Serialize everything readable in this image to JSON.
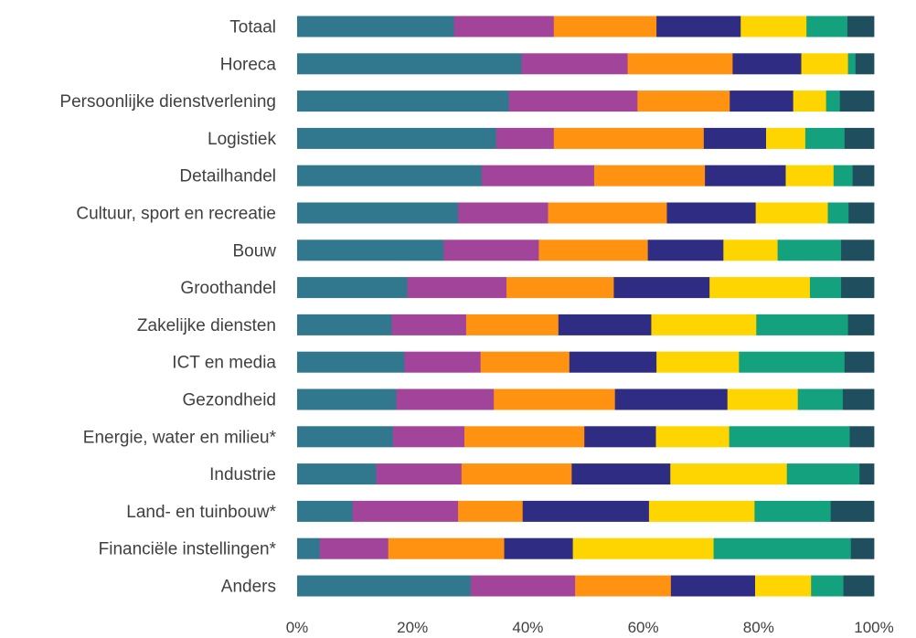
{
  "chart_data": {
    "type": "bar",
    "orientation": "horizontal",
    "stacked": true,
    "normalized": true,
    "categories": [
      "Totaal",
      "Horeca",
      "Persoonlijke dienstverlening",
      "Logistiek",
      "Detailhandel",
      "Cultuur, sport en recreatie",
      "Bouw",
      "Groothandel",
      "Zakelijke diensten",
      "ICT en media",
      "Gezondheid",
      "Energie, water en milieu*",
      "Industrie",
      "Land- en tuinbouw*",
      "Financiële instellingen*",
      "Anders"
    ],
    "series": [
      {
        "color": "#31788F",
        "values": [
          27.2,
          38.9,
          36.7,
          34.5,
          32.0,
          27.9,
          25.4,
          19.1,
          16.4,
          18.6,
          17.2,
          16.6,
          13.7,
          9.6,
          3.9,
          30.1
        ]
      },
      {
        "color": "#A2449A",
        "values": [
          17.3,
          18.4,
          22.3,
          10.0,
          19.5,
          15.6,
          16.5,
          17.2,
          12.9,
          13.2,
          16.9,
          12.4,
          14.8,
          18.3,
          11.9,
          18.1
        ]
      },
      {
        "color": "#FF9211",
        "values": [
          17.8,
          18.2,
          16.0,
          26.0,
          19.2,
          20.6,
          18.9,
          18.6,
          16.0,
          15.4,
          21.0,
          20.8,
          19.1,
          11.2,
          20.1,
          16.6
        ]
      },
      {
        "color": "#2F2C84",
        "values": [
          14.6,
          11.9,
          11.0,
          10.8,
          14.0,
          15.4,
          13.1,
          16.6,
          16.1,
          15.1,
          19.5,
          12.4,
          17.1,
          21.9,
          11.9,
          14.6
        ]
      },
      {
        "color": "#FFD500",
        "values": [
          11.4,
          8.1,
          5.7,
          6.8,
          8.3,
          12.5,
          9.4,
          17.4,
          18.2,
          14.3,
          12.2,
          12.7,
          20.2,
          18.3,
          24.4,
          9.7
        ]
      },
      {
        "color": "#14A17D",
        "values": [
          7.1,
          1.3,
          2.4,
          6.8,
          3.3,
          3.6,
          11.0,
          5.4,
          15.9,
          18.3,
          7.8,
          20.9,
          12.6,
          13.2,
          23.8,
          5.6
        ]
      },
      {
        "color": "#1F4F5E",
        "values": [
          4.6,
          3.2,
          5.9,
          5.1,
          3.7,
          4.4,
          5.7,
          5.7,
          4.5,
          5.1,
          5.4,
          4.2,
          2.5,
          7.5,
          4.0,
          5.3
        ]
      }
    ],
    "xlim": [
      0,
      100
    ],
    "xticks": [
      "0%",
      "20%",
      "40%",
      "60%",
      "80%",
      "100%"
    ],
    "grid": false,
    "legend": false
  }
}
